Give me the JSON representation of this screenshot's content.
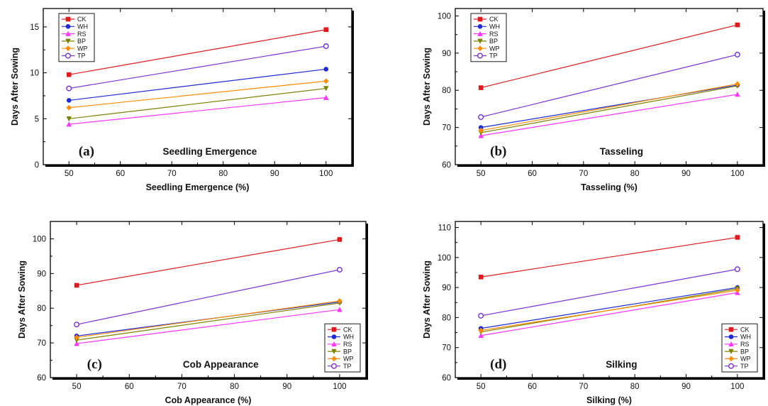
{
  "chart_data": [
    {
      "type": "line",
      "panel_label": "(a)",
      "panel_title": "Seedling Emergence",
      "xlabel": "Seedling Emergence (%)",
      "ylabel": "Days After Sowing",
      "xlim": [
        45,
        105
      ],
      "ylim": [
        0,
        17
      ],
      "xticks": [
        50,
        60,
        70,
        80,
        90,
        100
      ],
      "yticks": [
        0,
        5,
        10,
        15
      ],
      "x": [
        50,
        100
      ],
      "legend_position": "top-left",
      "series": [
        {
          "name": "CK",
          "values": [
            9.8,
            14.7
          ],
          "color": "#e31a1c",
          "marker": "square"
        },
        {
          "name": "WH",
          "values": [
            7.0,
            10.4
          ],
          "color": "#1f2bd6",
          "marker": "circle"
        },
        {
          "name": "RS",
          "values": [
            4.4,
            7.3
          ],
          "color": "#ff33ff",
          "marker": "triangle-up"
        },
        {
          "name": "BP",
          "values": [
            5.0,
            8.3
          ],
          "color": "#808000",
          "marker": "triangle-down"
        },
        {
          "name": "WP",
          "values": [
            6.2,
            9.1
          ],
          "color": "#ff8c00",
          "marker": "diamond"
        },
        {
          "name": "TP",
          "values": [
            8.3,
            12.9
          ],
          "color": "#7b2fd6",
          "marker": "open-circle"
        }
      ]
    },
    {
      "type": "line",
      "panel_label": "(b)",
      "panel_title": "Tasseling",
      "xlabel": "Tasseling (%)",
      "ylabel": "Days After Sowing",
      "xlim": [
        45,
        105
      ],
      "ylim": [
        60,
        102
      ],
      "xticks": [
        50,
        60,
        70,
        80,
        90,
        100
      ],
      "yticks": [
        60,
        70,
        80,
        90,
        100
      ],
      "x": [
        50,
        100
      ],
      "legend_position": "top-left",
      "series": [
        {
          "name": "CK",
          "values": [
            80.7,
            97.6
          ],
          "color": "#e31a1c",
          "marker": "square"
        },
        {
          "name": "WH",
          "values": [
            70.0,
            81.4
          ],
          "color": "#1f2bd6",
          "marker": "circle"
        },
        {
          "name": "RS",
          "values": [
            67.8,
            78.9
          ],
          "color": "#ff33ff",
          "marker": "triangle-up"
        },
        {
          "name": "BP",
          "values": [
            68.6,
            81.2
          ],
          "color": "#808000",
          "marker": "triangle-down"
        },
        {
          "name": "WP",
          "values": [
            69.2,
            81.7
          ],
          "color": "#ff8c00",
          "marker": "diamond"
        },
        {
          "name": "TP",
          "values": [
            72.8,
            89.6
          ],
          "color": "#7b2fd6",
          "marker": "open-circle"
        }
      ]
    },
    {
      "type": "line",
      "panel_label": "(c)",
      "panel_title": "Cob Appearance",
      "xlabel": "Cob Appearance (%)",
      "ylabel": "Days After Sowing",
      "xlim": [
        45,
        105
      ],
      "ylim": [
        60,
        105
      ],
      "xticks": [
        50,
        60,
        70,
        80,
        90,
        100
      ],
      "yticks": [
        60,
        70,
        80,
        90,
        100
      ],
      "x": [
        50,
        100
      ],
      "legend_position": "bottom-right",
      "series": [
        {
          "name": "CK",
          "values": [
            86.6,
            99.8
          ],
          "color": "#e31a1c",
          "marker": "square"
        },
        {
          "name": "WH",
          "values": [
            72.0,
            81.8
          ],
          "color": "#1f2bd6",
          "marker": "circle"
        },
        {
          "name": "RS",
          "values": [
            69.8,
            79.6
          ],
          "color": "#ff33ff",
          "marker": "triangle-up"
        },
        {
          "name": "BP",
          "values": [
            70.8,
            81.5
          ],
          "color": "#808000",
          "marker": "triangle-down"
        },
        {
          "name": "WP",
          "values": [
            71.6,
            82.1
          ],
          "color": "#ff8c00",
          "marker": "diamond"
        },
        {
          "name": "TP",
          "values": [
            75.3,
            91.1
          ],
          "color": "#7b2fd6",
          "marker": "open-circle"
        }
      ]
    },
    {
      "type": "line",
      "panel_label": "(d)",
      "panel_title": "Silking",
      "xlabel": "Silking (%)",
      "ylabel": "Days After Sowing",
      "xlim": [
        45,
        105
      ],
      "ylim": [
        60,
        112
      ],
      "xticks": [
        50,
        60,
        70,
        80,
        90,
        100
      ],
      "yticks": [
        60,
        70,
        80,
        90,
        100,
        110
      ],
      "x": [
        50,
        100
      ],
      "legend_position": "bottom-right",
      "series": [
        {
          "name": "CK",
          "values": [
            93.5,
            106.7
          ],
          "color": "#e31a1c",
          "marker": "square"
        },
        {
          "name": "WH",
          "values": [
            76.4,
            90.0
          ],
          "color": "#1f2bd6",
          "marker": "circle"
        },
        {
          "name": "RS",
          "values": [
            74.0,
            88.3
          ],
          "color": "#ff33ff",
          "marker": "triangle-up"
        },
        {
          "name": "BP",
          "values": [
            75.2,
            89.6
          ],
          "color": "#808000",
          "marker": "triangle-down"
        },
        {
          "name": "WP",
          "values": [
            75.7,
            89.1
          ],
          "color": "#ff8c00",
          "marker": "diamond"
        },
        {
          "name": "TP",
          "values": [
            80.6,
            96.1
          ],
          "color": "#7b2fd6",
          "marker": "open-circle"
        }
      ]
    }
  ]
}
